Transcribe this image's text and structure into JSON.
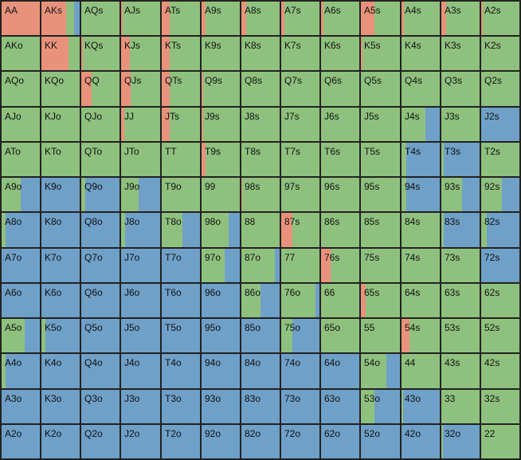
{
  "palette": {
    "raise": "#e8927c",
    "call": "#8fc17e",
    "fold": "#6fa0c8",
    "border": "#222222"
  },
  "grid": {
    "rows": [
      [
        {
          "label": "AA",
          "r": 1,
          "c": 0
        },
        {
          "label": "AKs",
          "r": 0.65,
          "c": 0.2
        },
        {
          "label": "AQs",
          "r": 0,
          "c": 1
        },
        {
          "label": "AJs",
          "r": 0.05,
          "c": 0.95
        },
        {
          "label": "ATs",
          "r": 0.2,
          "c": 0.8
        },
        {
          "label": "A9s",
          "r": 0.1,
          "c": 0.9
        },
        {
          "label": "A8s",
          "r": 0.12,
          "c": 0.88
        },
        {
          "label": "A7s",
          "r": 0.08,
          "c": 0.92
        },
        {
          "label": "A6s",
          "r": 0.06,
          "c": 0.94
        },
        {
          "label": "A5s",
          "r": 0.35,
          "c": 0.65
        },
        {
          "label": "A4s",
          "r": 0.06,
          "c": 0.94
        },
        {
          "label": "A3s",
          "r": 0.12,
          "c": 0.88
        },
        {
          "label": "A2s",
          "r": 0.04,
          "c": 0.96
        }
      ],
      [
        {
          "label": "AKo",
          "r": 0,
          "c": 1
        },
        {
          "label": "KK",
          "r": 0.7,
          "c": 0.3
        },
        {
          "label": "KQs",
          "r": 0.05,
          "c": 0.95
        },
        {
          "label": "KJs",
          "r": 0.22,
          "c": 0.78
        },
        {
          "label": "KTs",
          "r": 0.2,
          "c": 0.8
        },
        {
          "label": "K9s",
          "r": 0,
          "c": 1
        },
        {
          "label": "K8s",
          "r": 0,
          "c": 1
        },
        {
          "label": "K7s",
          "r": 0,
          "c": 1
        },
        {
          "label": "K6s",
          "r": 0,
          "c": 1
        },
        {
          "label": "K5s",
          "r": 0.05,
          "c": 0.95
        },
        {
          "label": "K4s",
          "r": 0,
          "c": 1
        },
        {
          "label": "K3s",
          "r": 0,
          "c": 1
        },
        {
          "label": "K2s",
          "r": 0,
          "c": 1
        }
      ],
      [
        {
          "label": "AQo",
          "r": 0,
          "c": 1
        },
        {
          "label": "KQo",
          "r": 0,
          "c": 1
        },
        {
          "label": "QQ",
          "r": 0.28,
          "c": 0.72
        },
        {
          "label": "QJs",
          "r": 0.25,
          "c": 0.75
        },
        {
          "label": "QTs",
          "r": 0.2,
          "c": 0.8
        },
        {
          "label": "Q9s",
          "r": 0.05,
          "c": 0.95
        },
        {
          "label": "Q8s",
          "r": 0,
          "c": 1
        },
        {
          "label": "Q7s",
          "r": 0,
          "c": 1
        },
        {
          "label": "Q6s",
          "r": 0,
          "c": 1
        },
        {
          "label": "Q5s",
          "r": 0,
          "c": 1
        },
        {
          "label": "Q4s",
          "r": 0,
          "c": 1
        },
        {
          "label": "Q3s",
          "r": 0,
          "c": 1
        },
        {
          "label": "Q2s",
          "r": 0,
          "c": 1
        }
      ],
      [
        {
          "label": "AJo",
          "r": 0,
          "c": 1
        },
        {
          "label": "KJo",
          "r": 0,
          "c": 1
        },
        {
          "label": "QJo",
          "r": 0,
          "c": 1
        },
        {
          "label": "JJ",
          "r": 0.08,
          "c": 0.92
        },
        {
          "label": "JTs",
          "r": 0.2,
          "c": 0.8
        },
        {
          "label": "J9s",
          "r": 0.05,
          "c": 0.95
        },
        {
          "label": "J8s",
          "r": 0,
          "c": 1
        },
        {
          "label": "J7s",
          "r": 0,
          "c": 1
        },
        {
          "label": "J6s",
          "r": 0,
          "c": 1
        },
        {
          "label": "J5s",
          "r": 0,
          "c": 1
        },
        {
          "label": "J4s",
          "r": 0,
          "c": 0.62
        },
        {
          "label": "J3s",
          "r": 0,
          "c": 1
        },
        {
          "label": "J2s",
          "r": 0,
          "c": 0
        }
      ],
      [
        {
          "label": "ATo",
          "r": 0,
          "c": 1
        },
        {
          "label": "KTo",
          "r": 0,
          "c": 1
        },
        {
          "label": "QTo",
          "r": 0,
          "c": 1
        },
        {
          "label": "JTo",
          "r": 0,
          "c": 1
        },
        {
          "label": "TT",
          "r": 0,
          "c": 1
        },
        {
          "label": "T9s",
          "r": 0.1,
          "c": 0.9
        },
        {
          "label": "T8s",
          "r": 0,
          "c": 1
        },
        {
          "label": "T7s",
          "r": 0,
          "c": 1
        },
        {
          "label": "T6s",
          "r": 0,
          "c": 1
        },
        {
          "label": "T5s",
          "r": 0,
          "c": 1
        },
        {
          "label": "T4s",
          "r": 0,
          "c": 0.12
        },
        {
          "label": "T3s",
          "r": 0,
          "c": 0.06
        },
        {
          "label": "T2s",
          "r": 0,
          "c": 1
        }
      ],
      [
        {
          "label": "A9o",
          "r": 0,
          "c": 0.5
        },
        {
          "label": "K9o",
          "r": 0,
          "c": 0
        },
        {
          "label": "Q9o",
          "r": 0,
          "c": 0.1
        },
        {
          "label": "J9o",
          "r": 0,
          "c": 0.45
        },
        {
          "label": "T9o",
          "r": 0,
          "c": 1
        },
        {
          "label": "99",
          "r": 0,
          "c": 1
        },
        {
          "label": "98s",
          "r": 0.03,
          "c": 0.97
        },
        {
          "label": "97s",
          "r": 0,
          "c": 1
        },
        {
          "label": "96s",
          "r": 0,
          "c": 1
        },
        {
          "label": "95s",
          "r": 0,
          "c": 1
        },
        {
          "label": "94s",
          "r": 0,
          "c": 0.12
        },
        {
          "label": "93s",
          "r": 0,
          "c": 0.55
        },
        {
          "label": "92s",
          "r": 0,
          "c": 0.55
        }
      ],
      [
        {
          "label": "A8o",
          "r": 0,
          "c": 0.1
        },
        {
          "label": "K8o",
          "r": 0,
          "c": 0
        },
        {
          "label": "Q8o",
          "r": 0,
          "c": 0
        },
        {
          "label": "J8o",
          "r": 0,
          "c": 0.1
        },
        {
          "label": "T8o",
          "r": 0,
          "c": 0.55
        },
        {
          "label": "98o",
          "r": 0,
          "c": 0.7
        },
        {
          "label": "88",
          "r": 0,
          "c": 1
        },
        {
          "label": "87s",
          "r": 0.3,
          "c": 0.7
        },
        {
          "label": "86s",
          "r": 0,
          "c": 1
        },
        {
          "label": "85s",
          "r": 0,
          "c": 1
        },
        {
          "label": "84s",
          "r": 0,
          "c": 1
        },
        {
          "label": "83s",
          "r": 0,
          "c": 0.06
        },
        {
          "label": "82s",
          "r": 0,
          "c": 0.15
        }
      ],
      [
        {
          "label": "A7o",
          "r": 0,
          "c": 0
        },
        {
          "label": "K7o",
          "r": 0,
          "c": 0
        },
        {
          "label": "Q7o",
          "r": 0,
          "c": 0
        },
        {
          "label": "J7o",
          "r": 0,
          "c": 0
        },
        {
          "label": "T7o",
          "r": 0,
          "c": 0
        },
        {
          "label": "97o",
          "r": 0,
          "c": 0.6
        },
        {
          "label": "87o",
          "r": 0,
          "c": 0.88
        },
        {
          "label": "77",
          "r": 0,
          "c": 1
        },
        {
          "label": "76s",
          "r": 0.26,
          "c": 0.74
        },
        {
          "label": "75s",
          "r": 0,
          "c": 1
        },
        {
          "label": "74s",
          "r": 0,
          "c": 1
        },
        {
          "label": "73s",
          "r": 0,
          "c": 1
        },
        {
          "label": "72s",
          "r": 0,
          "c": 0
        }
      ],
      [
        {
          "label": "A6o",
          "r": 0,
          "c": 0
        },
        {
          "label": "K6o",
          "r": 0,
          "c": 0
        },
        {
          "label": "Q6o",
          "r": 0,
          "c": 0
        },
        {
          "label": "J6o",
          "r": 0,
          "c": 0
        },
        {
          "label": "T6o",
          "r": 0,
          "c": 0
        },
        {
          "label": "96o",
          "r": 0,
          "c": 0
        },
        {
          "label": "86o",
          "r": 0,
          "c": 0.5
        },
        {
          "label": "76o",
          "r": 0,
          "c": 0.9
        },
        {
          "label": "66",
          "r": 0,
          "c": 1
        },
        {
          "label": "65s",
          "r": 0.12,
          "c": 0.88
        },
        {
          "label": "64s",
          "r": 0,
          "c": 1
        },
        {
          "label": "63s",
          "r": 0,
          "c": 1
        },
        {
          "label": "62s",
          "r": 0,
          "c": 1
        }
      ],
      [
        {
          "label": "A5o",
          "r": 0,
          "c": 0.6
        },
        {
          "label": "K5o",
          "r": 0,
          "c": 0.1
        },
        {
          "label": "Q5o",
          "r": 0,
          "c": 0
        },
        {
          "label": "J5o",
          "r": 0,
          "c": 0
        },
        {
          "label": "T5o",
          "r": 0,
          "c": 0
        },
        {
          "label": "95o",
          "r": 0,
          "c": 0
        },
        {
          "label": "85o",
          "r": 0,
          "c": 0
        },
        {
          "label": "75o",
          "r": 0,
          "c": 0.3
        },
        {
          "label": "65o",
          "r": 0,
          "c": 1
        },
        {
          "label": "55",
          "r": 0,
          "c": 1
        },
        {
          "label": "54s",
          "r": 0.2,
          "c": 0.8
        },
        {
          "label": "53s",
          "r": 0,
          "c": 1
        },
        {
          "label": "52s",
          "r": 0,
          "c": 1
        }
      ],
      [
        {
          "label": "A4o",
          "r": 0,
          "c": 0.1
        },
        {
          "label": "K4o",
          "r": 0,
          "c": 0
        },
        {
          "label": "Q4o",
          "r": 0,
          "c": 0
        },
        {
          "label": "J4o",
          "r": 0,
          "c": 0
        },
        {
          "label": "T4o",
          "r": 0,
          "c": 0
        },
        {
          "label": "94o",
          "r": 0,
          "c": 0
        },
        {
          "label": "84o",
          "r": 0,
          "c": 0
        },
        {
          "label": "74o",
          "r": 0,
          "c": 0
        },
        {
          "label": "64o",
          "r": 0,
          "c": 0
        },
        {
          "label": "54o",
          "r": 0,
          "c": 0.65
        },
        {
          "label": "44",
          "r": 0,
          "c": 1
        },
        {
          "label": "43s",
          "r": 0,
          "c": 1
        },
        {
          "label": "42s",
          "r": 0,
          "c": 1
        }
      ],
      [
        {
          "label": "A3o",
          "r": 0,
          "c": 0
        },
        {
          "label": "K3o",
          "r": 0,
          "c": 0
        },
        {
          "label": "Q3o",
          "r": 0,
          "c": 0
        },
        {
          "label": "J3o",
          "r": 0,
          "c": 0
        },
        {
          "label": "T3o",
          "r": 0,
          "c": 0
        },
        {
          "label": "93o",
          "r": 0,
          "c": 0
        },
        {
          "label": "83o",
          "r": 0,
          "c": 0
        },
        {
          "label": "73o",
          "r": 0,
          "c": 0
        },
        {
          "label": "63o",
          "r": 0,
          "c": 0
        },
        {
          "label": "53o",
          "r": 0,
          "c": 0.35
        },
        {
          "label": "43o",
          "r": 0,
          "c": 0.05
        },
        {
          "label": "33",
          "r": 0,
          "c": 1
        },
        {
          "label": "32s",
          "r": 0,
          "c": 1
        }
      ],
      [
        {
          "label": "A2o",
          "r": 0,
          "c": 0
        },
        {
          "label": "K2o",
          "r": 0,
          "c": 0
        },
        {
          "label": "Q2o",
          "r": 0,
          "c": 0
        },
        {
          "label": "J2o",
          "r": 0,
          "c": 0
        },
        {
          "label": "T2o",
          "r": 0,
          "c": 0
        },
        {
          "label": "92o",
          "r": 0,
          "c": 0
        },
        {
          "label": "82o",
          "r": 0,
          "c": 0
        },
        {
          "label": "72o",
          "r": 0,
          "c": 0
        },
        {
          "label": "62o",
          "r": 0,
          "c": 0
        },
        {
          "label": "52o",
          "r": 0,
          "c": 0
        },
        {
          "label": "42o",
          "r": 0,
          "c": 0
        },
        {
          "label": "32o",
          "r": 0,
          "c": 0.05
        },
        {
          "label": "22",
          "r": 0,
          "c": 1
        }
      ]
    ]
  }
}
